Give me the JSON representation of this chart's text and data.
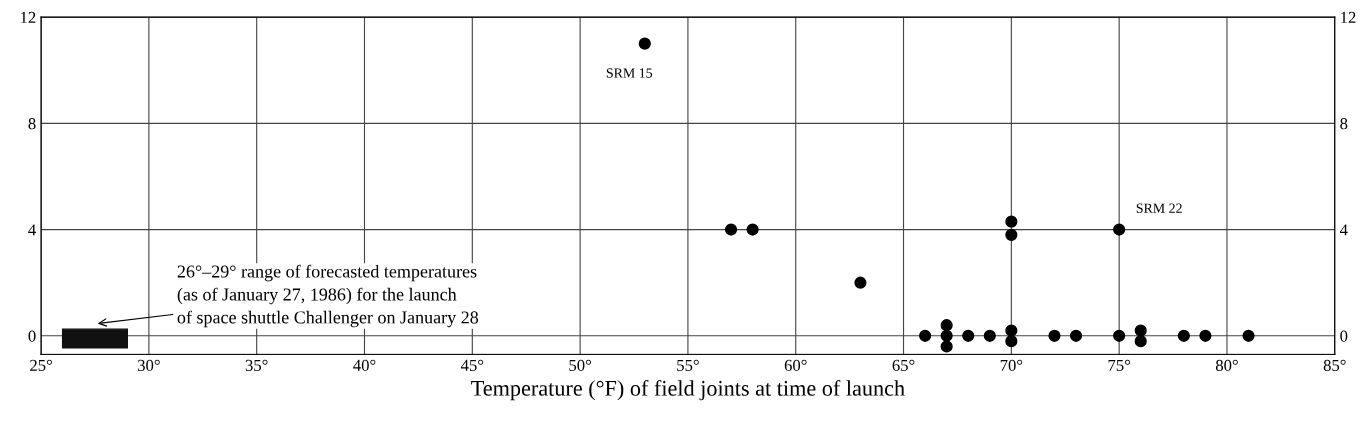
{
  "chart_data": {
    "type": "scatter",
    "xlabel": "Temperature (°F) of field joints at time of launch",
    "x": [
      53,
      57,
      58,
      63,
      66,
      67,
      67,
      67,
      68,
      69,
      70,
      70,
      70,
      70,
      72,
      73,
      75,
      75,
      76,
      76,
      78,
      79,
      81
    ],
    "series": [
      {
        "color": "#000000",
        "values": [
          11,
          4,
          4,
          2,
          0,
          0.4,
          0,
          -0.4,
          0,
          0,
          4.3,
          3.8,
          0.2,
          -0.2,
          0,
          0,
          4,
          0,
          0.2,
          -0.2,
          0,
          0,
          0
        ]
      }
    ],
    "marker": "circle",
    "grid": true,
    "legend": false,
    "xlim": [
      25,
      85
    ],
    "xticks": [
      {
        "value": 25,
        "label": "25°"
      },
      {
        "value": 30,
        "label": "30°"
      },
      {
        "value": 35,
        "label": "35°"
      },
      {
        "value": 40,
        "label": "40°"
      },
      {
        "value": 45,
        "label": "45°"
      },
      {
        "value": 50,
        "label": "50°"
      },
      {
        "value": 55,
        "label": "55°"
      },
      {
        "value": 60,
        "label": "60°"
      },
      {
        "value": 65,
        "label": "65°"
      },
      {
        "value": 70,
        "label": "70°"
      },
      {
        "value": 75,
        "label": "75°"
      },
      {
        "value": 80,
        "label": "80°"
      },
      {
        "value": 85,
        "label": "85°"
      }
    ],
    "ylim": [
      -0.7,
      12
    ],
    "yticks": [
      0,
      4,
      8,
      12
    ],
    "y2lim": [
      -0.7,
      12
    ],
    "y2ticks": [
      0,
      4,
      8,
      12
    ],
    "bands": [
      {
        "axis": "x",
        "from": 26,
        "to": 29,
        "color": "#111111",
        "label": "26°–29° range of forecasted temperatures\n(as of January 27, 1986) for the launch\nof space shuttle Challenger on January 28"
      }
    ],
    "annotations": [
      {
        "text": "SRM 15",
        "x": 53,
        "y": 11
      },
      {
        "text": "SRM 22",
        "x": 75,
        "y": 4
      }
    ]
  }
}
